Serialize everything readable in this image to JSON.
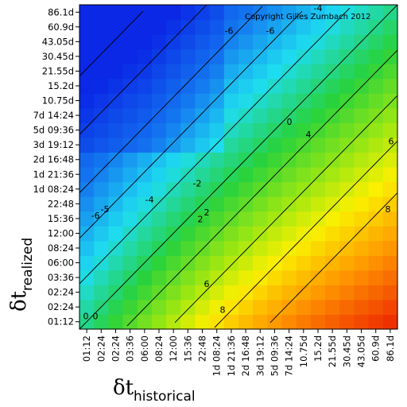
{
  "chart_data": {
    "type": "heatmap",
    "title": "",
    "copyright": "Copyright Gilles Zumbach 2012",
    "xlabel": {
      "symbol": "δt",
      "subscript": "historical"
    },
    "ylabel": {
      "symbol": "δt",
      "subscript": "realized"
    },
    "x_ticks": [
      "01:12",
      "02:24",
      "02:24",
      "03:36",
      "06:00",
      "08:24",
      "12:00",
      "15:36",
      "22:48",
      "1d 08:24",
      "1d 21:36",
      "2d 16:48",
      "3d 19:12",
      "5d 09:36",
      "7d 14:24",
      "10.75d",
      "15.2d",
      "21.55d",
      "30.45d",
      "43.05d",
      "60.9d",
      "86.1d"
    ],
    "y_ticks": [
      "01:12",
      "02:24",
      "02:24",
      "03:36",
      "06:00",
      "08:24",
      "12:00",
      "15:36",
      "22:48",
      "1d 08:24",
      "1d 21:36",
      "2d 16:48",
      "3d 19:12",
      "5d 09:36",
      "7d 14:24",
      "10.75d",
      "15.2d",
      "21.55d",
      "30.45d",
      "43.05d",
      "60.9d",
      "86.1d"
    ],
    "contour_labels": [
      "-4",
      "-6",
      "-6",
      "-5",
      "-6",
      "-4",
      "-2",
      "0",
      "0",
      "2",
      "4",
      "6",
      "8",
      "8",
      "6",
      "0",
      "2"
    ],
    "color_scale": {
      "min": -7,
      "max": 9,
      "low_color": "#0a3ae8",
      "mid_color": "#22d020",
      "high_color": "#e81400"
    },
    "grid": false,
    "legend": "none"
  }
}
